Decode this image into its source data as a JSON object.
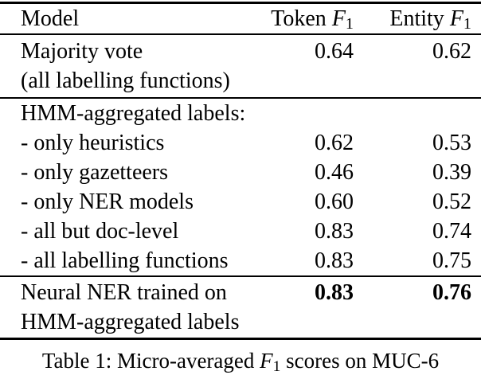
{
  "table": {
    "columns": {
      "model": "Model",
      "token_prefix": "Token ",
      "entity_prefix": "Entity ",
      "f": "F",
      "sub": "1"
    },
    "sections": [
      {
        "rows": [
          {
            "label": "Majority vote",
            "token": "0.64",
            "entity": "0.62"
          },
          {
            "label": "(all labelling functions)",
            "token": "",
            "entity": ""
          }
        ]
      },
      {
        "rows": [
          {
            "label": "HMM-aggregated labels:",
            "token": "",
            "entity": ""
          },
          {
            "label": "- only heuristics",
            "token": "0.62",
            "entity": "0.53"
          },
          {
            "label": "- only gazetteers",
            "token": "0.46",
            "entity": "0.39"
          },
          {
            "label": "- only NER models",
            "token": "0.60",
            "entity": "0.52"
          },
          {
            "label": "- all but doc-level",
            "token": "0.83",
            "entity": "0.74"
          },
          {
            "label": "- all labelling functions",
            "token": "0.83",
            "entity": "0.75"
          }
        ]
      },
      {
        "rows": [
          {
            "label": "Neural NER trained on",
            "token": "0.83",
            "entity": "0.76"
          },
          {
            "label": "HMM-aggregated labels",
            "token": "",
            "entity": ""
          }
        ]
      }
    ]
  },
  "caption": {
    "prefix": "Table 1: Micro-averaged ",
    "f": "F",
    "sub": "1",
    "suffix": " scores on MUC-6"
  },
  "colors": {
    "text": "#000000",
    "background": "#ffffff",
    "rule": "#000000"
  }
}
